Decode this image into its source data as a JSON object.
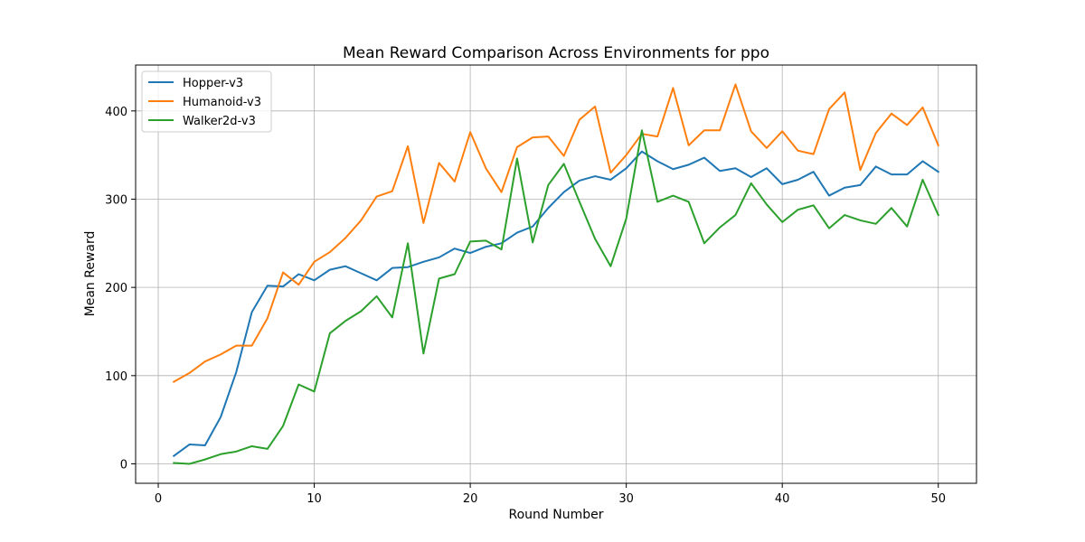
{
  "chart_data": {
    "type": "line",
    "title": "Mean Reward Comparison Across Environments for ppo",
    "xlabel": "Round Number",
    "ylabel": "Mean Reward",
    "xlim": [
      -1.45,
      52.45
    ],
    "ylim": [
      -22,
      452
    ],
    "xticks": [
      0,
      10,
      20,
      30,
      40,
      50
    ],
    "yticks": [
      0,
      100,
      200,
      300,
      400
    ],
    "grid": true,
    "legend_position": "top-left",
    "x": [
      1,
      2,
      3,
      4,
      5,
      6,
      7,
      8,
      9,
      10,
      11,
      12,
      13,
      14,
      15,
      16,
      17,
      18,
      19,
      20,
      21,
      22,
      23,
      24,
      25,
      26,
      27,
      28,
      29,
      30,
      31,
      32,
      33,
      34,
      35,
      36,
      37,
      38,
      39,
      40,
      41,
      42,
      43,
      44,
      45,
      46,
      47,
      48,
      49,
      50
    ],
    "series": [
      {
        "name": "Hopper-v3",
        "color": "#1f77b4",
        "values": [
          9,
          22,
          21,
          53,
          104,
          172,
          202,
          201,
          215,
          208,
          220,
          224,
          216,
          208,
          222,
          223,
          229,
          234,
          244,
          239,
          246,
          250,
          262,
          269,
          290,
          308,
          321,
          326,
          322,
          335,
          354,
          343,
          334,
          339,
          347,
          332,
          335,
          325,
          335,
          317,
          322,
          331,
          304,
          313,
          316,
          337,
          328,
          328,
          343,
          331
        ]
      },
      {
        "name": "Humanoid-v3",
        "color": "#ff7f0e",
        "values": [
          93,
          103,
          116,
          124,
          134,
          134,
          165,
          217,
          203,
          229,
          240,
          256,
          276,
          303,
          309,
          360,
          273,
          341,
          320,
          376,
          335,
          308,
          359,
          370,
          371,
          349,
          390,
          405,
          330,
          350,
          374,
          371,
          426,
          361,
          378,
          378,
          430,
          377,
          358,
          377,
          355,
          351,
          402,
          421,
          333,
          375,
          397,
          384,
          404,
          361
        ]
      },
      {
        "name": "Walker2d-v3",
        "color": "#2ca02c",
        "values": [
          1,
          0,
          5,
          11,
          14,
          20,
          17,
          43,
          90,
          82,
          148,
          162,
          173,
          190,
          166,
          250,
          125,
          210,
          215,
          252,
          253,
          243,
          346,
          251,
          316,
          340,
          297,
          255,
          224,
          278,
          378,
          297,
          304,
          297,
          250,
          268,
          282,
          318,
          294,
          274,
          288,
          293,
          267,
          282,
          276,
          272,
          290,
          269,
          322,
          282
        ]
      }
    ]
  }
}
